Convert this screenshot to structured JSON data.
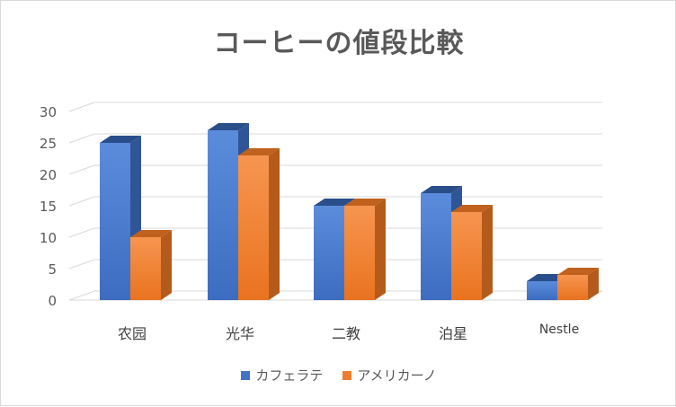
{
  "chart_data": {
    "type": "bar",
    "title": "コーヒーの値段比較",
    "categories": [
      "农园",
      "光华",
      "二教",
      "泊星",
      "Nestle"
    ],
    "series": [
      {
        "name": "カフェラテ",
        "values": [
          25,
          27,
          15,
          17,
          3
        ],
        "color": "#4472c4"
      },
      {
        "name": "アメリカーノ",
        "values": [
          10,
          23,
          15,
          14,
          4
        ],
        "color": "#ed7d31"
      }
    ],
    "ylim": [
      0,
      30
    ],
    "yticks": [
      0,
      5,
      10,
      15,
      20,
      25,
      30
    ],
    "grid": true,
    "legend_position": "bottom",
    "style": "3d-column"
  }
}
